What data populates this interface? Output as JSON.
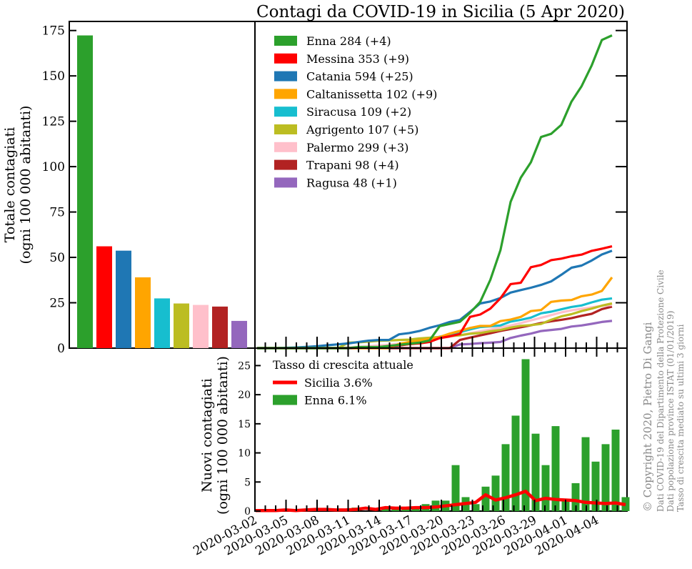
{
  "title": "Contagi da COVID-19 in Sicilia (5 Apr 2020)",
  "credits": {
    "copyright": "© Copyright 2020, Pietro Di Gangi",
    "line1": "Dati COVID-19 del Dipartimento della Protezione Civile",
    "line2": "Dati popolazione province ISTAT (01/01/2019)",
    "line3": "Tasso di crescita mediato su ultimi 3 giorni"
  },
  "colors": {
    "Enna": "#2ca02c",
    "Messina": "#ff0000",
    "Catania": "#1f77b4",
    "Caltanissetta": "#ffa500",
    "Siracusa": "#17becf",
    "Agrigento": "#bcbd22",
    "Palermo": "#ffc0cb",
    "Trapani": "#b22222",
    "Ragusa": "#9467bd",
    "Sicilia": "#ff0000"
  },
  "chart_data": [
    {
      "id": "bar-totals",
      "type": "bar",
      "ylabel_line1": "Totale contagiati",
      "ylabel_line2": "(ogni 100 000 abitanti)",
      "ylim": [
        0,
        180
      ],
      "yticks": [
        0,
        25,
        50,
        75,
        100,
        125,
        150,
        175
      ],
      "categories": [
        "Enna",
        "Messina",
        "Catania",
        "Caltanissetta",
        "Siracusa",
        "Agrigento",
        "Palermo",
        "Trapani",
        "Ragusa"
      ],
      "values": [
        172.3,
        56.1,
        53.7,
        39.0,
        27.4,
        24.6,
        23.8,
        22.9,
        15.0
      ]
    },
    {
      "id": "line-totals",
      "type": "line",
      "ylim": [
        0,
        180
      ],
      "xtick_labels": [
        "2020-03-02",
        "2020-03-05",
        "2020-03-08",
        "2020-03-11",
        "2020-03-14",
        "2020-03-17",
        "2020-03-20",
        "2020-03-23",
        "2020-03-26",
        "2020-03-29",
        "2020-04-01",
        "2020-04-04"
      ],
      "legend": [
        {
          "name": "Enna",
          "label": "Enna   284 (+4)"
        },
        {
          "name": "Messina",
          "label": "Messina   353 (+9)"
        },
        {
          "name": "Catania",
          "label": "Catania   594 (+25)"
        },
        {
          "name": "Caltanissetta",
          "label": "Caltanissetta   102 (+9)"
        },
        {
          "name": "Siracusa",
          "label": "Siracusa   109 (+2)"
        },
        {
          "name": "Agrigento",
          "label": "Agrigento   107 (+5)"
        },
        {
          "name": "Palermo",
          "label": "Palermo   299 (+3)"
        },
        {
          "name": "Trapani",
          "label": "Trapani   98 (+4)"
        },
        {
          "name": "Ragusa",
          "label": "Ragusa   48 (+1)"
        }
      ],
      "series": [
        {
          "name": "Enna",
          "values": [
            0,
            0,
            0,
            0,
            0,
            0,
            0,
            0,
            0,
            0,
            0.6,
            0.6,
            0.6,
            1.2,
            1.8,
            2.4,
            3.0,
            4.2,
            12.1,
            13.3,
            14.5,
            19.4,
            25.5,
            37.6,
            54.0,
            80.6,
            93.9,
            102.4,
            116.3,
            118.1,
            123.0,
            135.8,
            144.3,
            155.8,
            169.8,
            172.3
          ]
        },
        {
          "name": "Messina",
          "values": [
            0,
            0,
            0,
            0,
            0,
            0,
            0,
            0,
            0,
            0,
            0.3,
            0.3,
            0.6,
            1.0,
            1.5,
            2.2,
            2.6,
            3.4,
            5.5,
            6.5,
            7.8,
            17.2,
            18.5,
            21.8,
            27.5,
            35.3,
            36.0,
            44.6,
            45.8,
            48.5,
            49.3,
            50.6,
            51.5,
            53.6,
            54.8,
            56.1
          ]
        },
        {
          "name": "Catania",
          "values": [
            0,
            0,
            0,
            0.2,
            0.4,
            0.7,
            1.1,
            1.6,
            2.1,
            2.6,
            3.4,
            4.1,
            4.5,
            4.5,
            7.6,
            8.3,
            9.4,
            11.2,
            12.6,
            14.4,
            15.5,
            20.0,
            24.6,
            25.7,
            27.6,
            30.6,
            32.0,
            33.3,
            34.8,
            36.8,
            40.4,
            44.3,
            45.5,
            48.3,
            51.6,
            53.7
          ]
        },
        {
          "name": "Caltanissetta",
          "values": [
            0,
            0,
            0,
            0,
            0,
            0,
            0,
            0,
            0,
            0,
            0,
            0,
            0,
            0,
            2.3,
            3.4,
            4.2,
            5.1,
            6.1,
            8.0,
            9.5,
            11.1,
            12.2,
            12.2,
            14.9,
            15.7,
            17.2,
            20.4,
            21.0,
            25.5,
            26.2,
            26.5,
            28.6,
            29.5,
            31.5,
            39.0
          ]
        },
        {
          "name": "Siracusa",
          "values": [
            0,
            0,
            0,
            0,
            0,
            0,
            0,
            0,
            0,
            0,
            0,
            0.3,
            0.5,
            0.8,
            1.3,
            2.3,
            3.5,
            5.0,
            6.3,
            7.5,
            8.8,
            10.3,
            11.6,
            12.0,
            12.5,
            14.6,
            15.6,
            16.8,
            19.2,
            20.1,
            21.4,
            22.7,
            23.5,
            25.2,
            26.7,
            27.4
          ]
        },
        {
          "name": "Agrigento",
          "values": [
            0,
            0,
            0,
            0,
            0,
            0,
            0,
            0,
            0,
            3.0,
            3.2,
            3.6,
            4.0,
            4.2,
            4.5,
            4.7,
            5.3,
            5.7,
            6.1,
            6.7,
            7.1,
            7.9,
            8.3,
            9.3,
            10.0,
            11.3,
            12.3,
            12.7,
            13.3,
            15.6,
            17.5,
            18.7,
            20.4,
            21.8,
            23.4,
            24.6
          ]
        },
        {
          "name": "Palermo",
          "values": [
            0,
            0,
            0,
            0,
            0,
            0,
            0,
            0,
            0,
            0.4,
            0.7,
            1.0,
            1.4,
            1.8,
            2.4,
            3.1,
            3.8,
            4.6,
            5.4,
            6.3,
            7.1,
            8.2,
            9.2,
            10.2,
            11.4,
            12.5,
            13.8,
            15.3,
            16.7,
            18.2,
            19.7,
            20.8,
            21.7,
            22.5,
            23.3,
            23.8
          ]
        },
        {
          "name": "Trapani",
          "values": [
            0,
            0,
            0,
            0,
            0,
            0,
            0,
            0,
            0,
            0,
            0,
            0,
            0,
            0,
            0,
            0,
            0,
            0,
            0,
            0,
            4.5,
            5.8,
            7.0,
            8.2,
            9.5,
            10.5,
            11.5,
            12.6,
            13.8,
            14.8,
            15.6,
            16.5,
            17.8,
            18.9,
            21.5,
            22.9
          ]
        },
        {
          "name": "Ragusa",
          "values": [
            0,
            0,
            0,
            0,
            0,
            0,
            0,
            0,
            0,
            0,
            0,
            0,
            0,
            0,
            0,
            0,
            0,
            0,
            0,
            0,
            2.0,
            2.3,
            2.7,
            3.0,
            3.4,
            5.6,
            6.9,
            8.0,
            9.4,
            10.0,
            10.6,
            11.9,
            12.5,
            13.4,
            14.4,
            15.0
          ]
        }
      ]
    },
    {
      "id": "bar-new",
      "type": "bar",
      "ylabel_line1": "Nuovi contagiati",
      "ylabel_line2": "(ogni 100 000 abitanti)",
      "ylim": [
        0,
        28
      ],
      "yticks": [
        0,
        5,
        10,
        15,
        20,
        25
      ],
      "legend_title": "Tasso di crescita attuale",
      "legend": [
        {
          "name": "Sicilia",
          "label": "Sicilia   3.6%"
        },
        {
          "name": "Enna",
          "label": "Enna   6.1%"
        }
      ],
      "series": [
        {
          "name": "Enna",
          "type": "bar",
          "values": [
            0,
            0,
            0,
            0,
            0,
            0,
            0,
            0,
            0,
            0,
            0.6,
            0,
            0,
            0.6,
            0.6,
            0.6,
            0.6,
            1.2,
            1.8,
            1.8,
            7.9,
            2.4,
            1.2,
            4.2,
            6.1,
            11.5,
            16.4,
            26.1,
            13.3,
            7.9,
            14.6,
            1.8,
            4.8,
            12.7,
            8.5,
            11.5,
            14.0,
            2.4
          ]
        },
        {
          "name": "Sicilia",
          "type": "line",
          "values": [
            0.1,
            0.1,
            0.1,
            0.2,
            0.1,
            0.2,
            0.3,
            0.3,
            0.2,
            0.2,
            0.3,
            0.5,
            0.3,
            0.6,
            0.5,
            0.5,
            0.6,
            0.6,
            0.7,
            0.9,
            1.1,
            1.3,
            1.5,
            2.8,
            1.9,
            2.3,
            2.8,
            3.4,
            1.8,
            2.2,
            2.0,
            1.9,
            1.8,
            1.5,
            1.4,
            1.3,
            1.4,
            1.1
          ]
        }
      ]
    }
  ]
}
